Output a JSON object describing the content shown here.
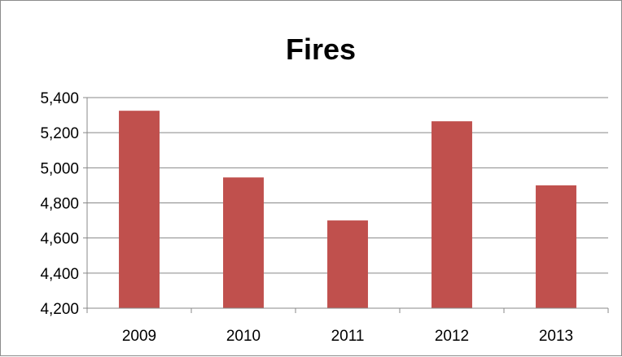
{
  "chart_data": {
    "type": "bar",
    "title": "Fires",
    "xlabel": "",
    "ylabel": "",
    "categories": [
      "2009",
      "2010",
      "2011",
      "2012",
      "2013"
    ],
    "values": [
      5325,
      4945,
      4700,
      5265,
      4900
    ],
    "ylim": [
      4200,
      5400
    ],
    "yticks": [
      4200,
      4400,
      4600,
      4800,
      5000,
      5200,
      5400
    ],
    "ytick_labels": [
      "4,200",
      "4,400",
      "4,600",
      "4,800",
      "5,000",
      "5,200",
      "5,400"
    ],
    "grid": true,
    "legend": "none",
    "bar_color": "#c0504d"
  }
}
